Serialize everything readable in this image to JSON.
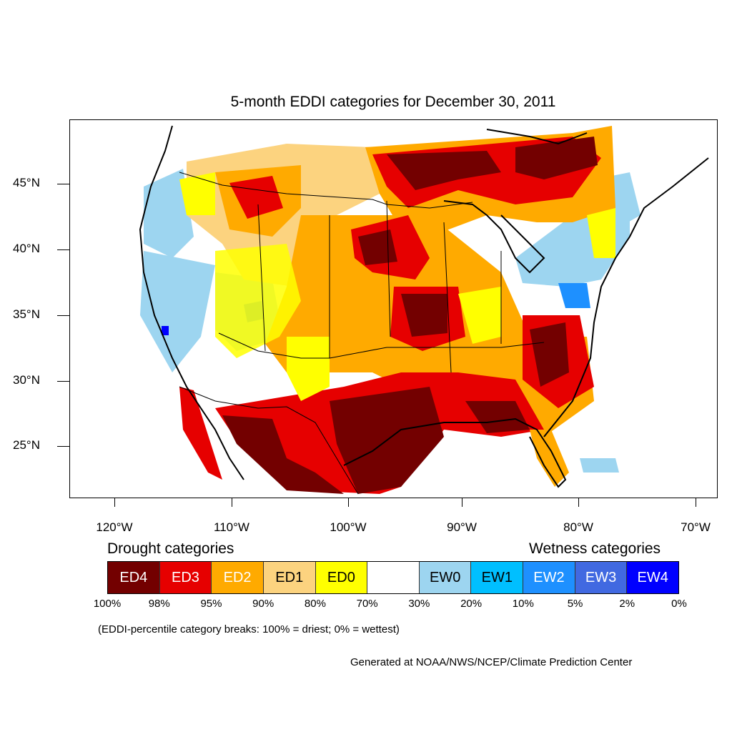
{
  "title": "5-month EDDI categories for December 30, 2011",
  "lat_labels": [
    "45°N",
    "40°N",
    "35°N",
    "30°N",
    "25°N"
  ],
  "lon_labels": [
    "120°W",
    "110°W",
    "100°W",
    "90°W",
    "80°W",
    "70°W"
  ],
  "legend": {
    "drought_heading": "Drought categories",
    "wetness_heading": "Wetness categories",
    "categories": [
      {
        "label": "ED4",
        "color": "#730000",
        "text_color": "#ffffff"
      },
      {
        "label": "ED3",
        "color": "#e60000",
        "text_color": "#ffffff"
      },
      {
        "label": "ED2",
        "color": "#ffaa00",
        "text_color": "#ffffff"
      },
      {
        "label": "ED1",
        "color": "#fcd37f",
        "text_color": "#000000"
      },
      {
        "label": "ED0",
        "color": "#ffff00",
        "text_color": "#000000"
      },
      {
        "label": "",
        "color": "#ffffff",
        "text_color": "#000000"
      },
      {
        "label": "EW0",
        "color": "#9dd5f0",
        "text_color": "#000000"
      },
      {
        "label": "EW1",
        "color": "#00bfff",
        "text_color": "#000000"
      },
      {
        "label": "EW2",
        "color": "#1e90ff",
        "text_color": "#ffffff"
      },
      {
        "label": "EW3",
        "color": "#4169e1",
        "text_color": "#ffffff"
      },
      {
        "label": "EW4",
        "color": "#0000ff",
        "text_color": "#ffffff"
      }
    ],
    "percentiles": [
      "100%",
      "98%",
      "95%",
      "90%",
      "80%",
      "70%",
      "30%",
      "20%",
      "10%",
      "5%",
      "2%",
      "0%"
    ]
  },
  "note": "(EDDI-percentile category breaks: 100% = driest; 0% = wettest)",
  "credit": "Generated at NOAA/NWS/NCEP/Climate Prediction Center"
}
